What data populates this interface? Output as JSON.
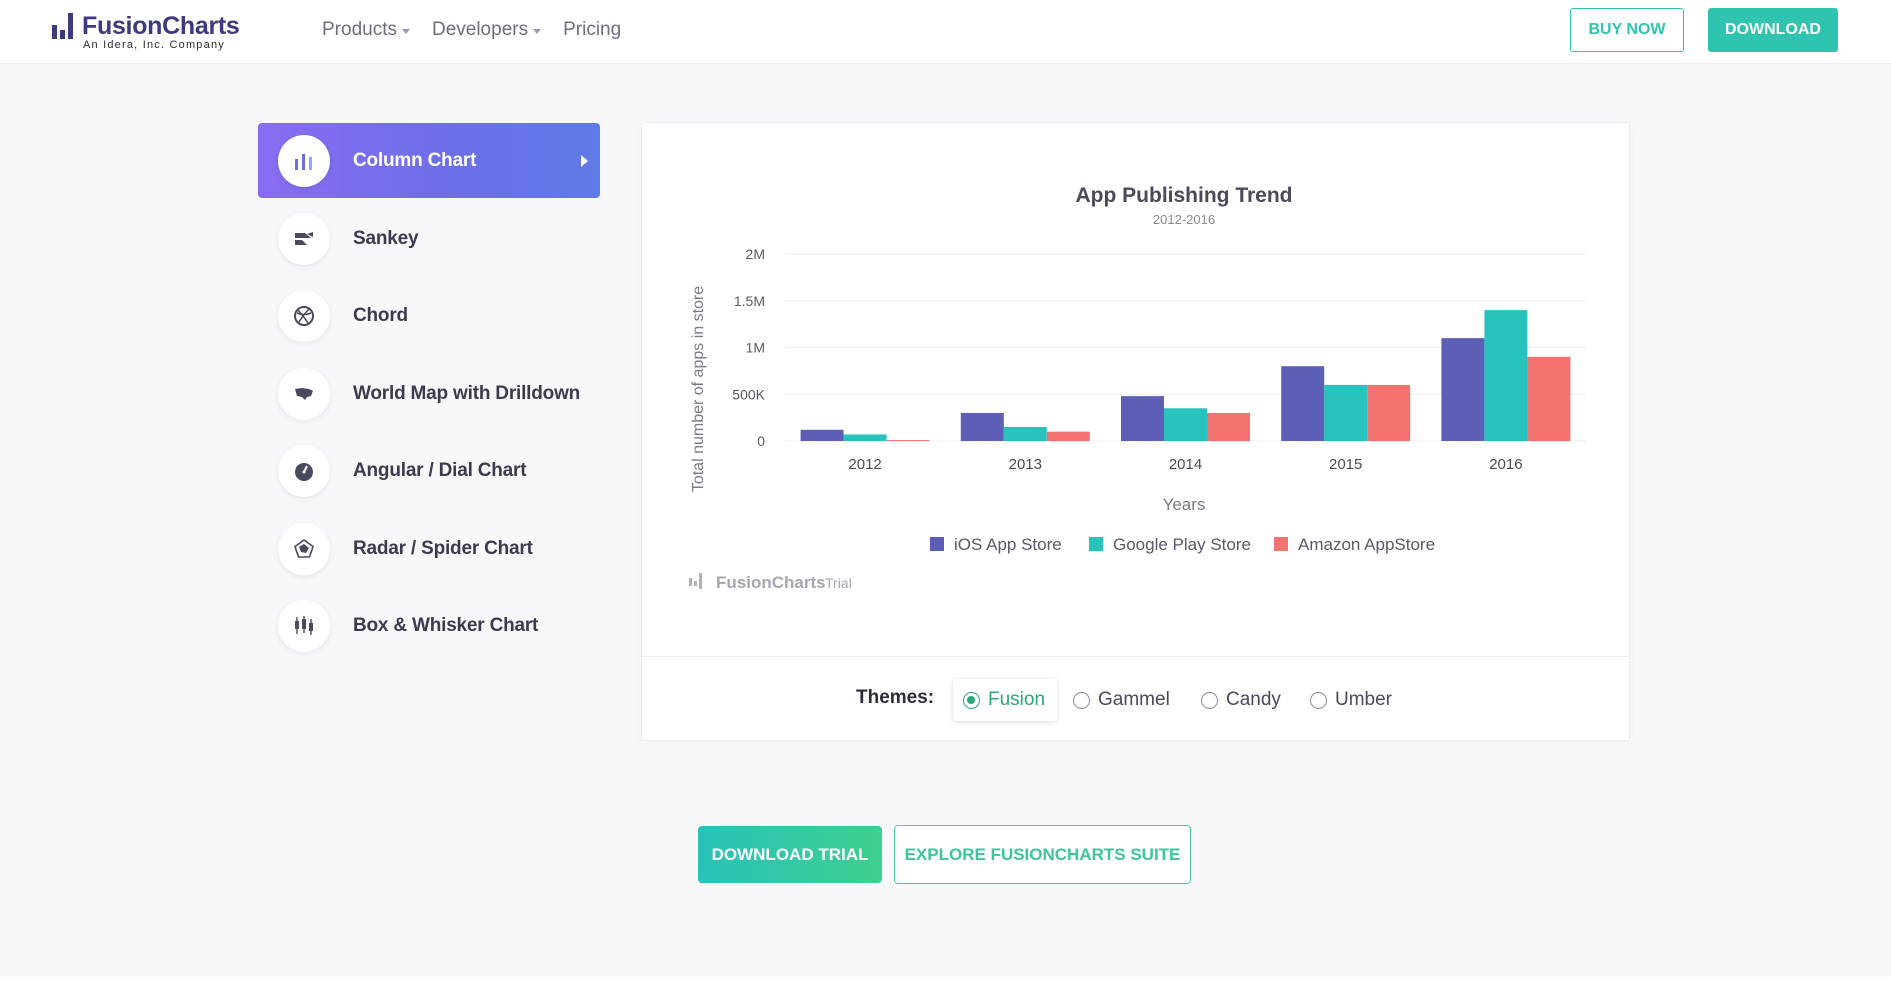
{
  "header": {
    "logo_name": "FusionCharts",
    "logo_sub": "An Idera, Inc. Company",
    "nav": [
      {
        "label": "Products",
        "has_caret": true
      },
      {
        "label": "Developers",
        "has_caret": true
      },
      {
        "label": "Pricing",
        "has_caret": false
      }
    ],
    "buy_now": "BUY NOW",
    "download": "DOWNLOAD"
  },
  "sidebar": {
    "items": [
      {
        "label": "Column Chart",
        "icon": "column-chart-icon",
        "active": true
      },
      {
        "label": "Sankey",
        "icon": "sankey-icon",
        "active": false
      },
      {
        "label": "Chord",
        "icon": "chord-icon",
        "active": false
      },
      {
        "label": "World Map with Drilldown",
        "icon": "map-icon",
        "active": false
      },
      {
        "label": "Angular / Dial Chart",
        "icon": "dial-icon",
        "active": false
      },
      {
        "label": "Radar / Spider Chart",
        "icon": "radar-icon",
        "active": false
      },
      {
        "label": "Box & Whisker Chart",
        "icon": "box-whisker-icon",
        "active": false
      }
    ]
  },
  "chart_data": {
    "type": "bar",
    "title": "App Publishing Trend",
    "subtitle": "2012-2016",
    "xlabel": "Years",
    "ylabel": "Total number of apps in store",
    "categories": [
      "2012",
      "2013",
      "2014",
      "2015",
      "2016"
    ],
    "ylim": [
      0,
      2000000
    ],
    "yticks": [
      0,
      500000,
      1000000,
      1500000,
      2000000
    ],
    "ytick_labels": [
      "0",
      "500K",
      "1M",
      "1.5M",
      "2M"
    ],
    "grid": true,
    "legend_position": "bottom",
    "series": [
      {
        "name": "iOS App Store",
        "color": "#5c5fb5",
        "values": [
          120000,
          300000,
          480000,
          800000,
          1100000
        ]
      },
      {
        "name": "Google Play Store",
        "color": "#29c3be",
        "values": [
          70000,
          150000,
          350000,
          600000,
          1400000
        ]
      },
      {
        "name": "Amazon AppStore",
        "color": "#f2726f",
        "values": [
          10000,
          100000,
          300000,
          600000,
          900000
        ]
      }
    ],
    "watermark": "FusionCharts",
    "watermark_suffix": "Trial"
  },
  "themes": {
    "label": "Themes:",
    "options": [
      "Fusion",
      "Gammel",
      "Candy",
      "Umber"
    ],
    "selected": "Fusion"
  },
  "cta": {
    "download_trial": "DOWNLOAD TRIAL",
    "explore": "EXPLORE FUSIONCHARTS SUITE"
  },
  "colors": {
    "brand": "#3d3a7e",
    "accent_green": "#2ec4b0",
    "active_gradient_start": "#8a6cf3",
    "active_gradient_end": "#5f7ae6"
  }
}
